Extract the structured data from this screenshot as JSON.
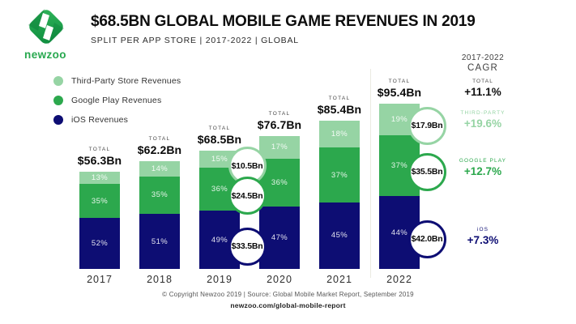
{
  "palette": {
    "third_party": "#96D4A4",
    "google_play": "#2CA84D",
    "ios": "#0D0D73"
  },
  "brand": {
    "name": "newzoo"
  },
  "header": {
    "title": "$68.5BN GLOBAL MOBILE GAME REVENUES IN 2019",
    "subtitle": "SPLIT PER APP STORE | 2017-2022 | GLOBAL"
  },
  "legend": {
    "items": [
      {
        "key": "third_party",
        "label": "Third-Party Store Revenues"
      },
      {
        "key": "google_play",
        "label": "Google Play Revenues"
      },
      {
        "key": "ios",
        "label": "iOS Revenues"
      }
    ]
  },
  "chart_data": {
    "type": "bar",
    "stacked": true,
    "unit": "%",
    "title": "Global mobile game revenues split per app store, 2017-2022",
    "categories": [
      "2017",
      "2018",
      "2019",
      "2020",
      "2021",
      "2022"
    ],
    "totals_bn": [
      56.3,
      62.2,
      68.5,
      76.7,
      85.4,
      95.4
    ],
    "totals_display": [
      "$56.3Bn",
      "$62.2Bn",
      "$68.5Bn",
      "$76.7Bn",
      "$85.4Bn",
      "$95.4Bn"
    ],
    "total_caption": "TOTAL",
    "series": [
      {
        "key": "ios",
        "name": "iOS Revenues",
        "values": [
          52,
          51,
          49,
          47,
          45,
          44
        ]
      },
      {
        "key": "google_play",
        "name": "Google Play Revenues",
        "values": [
          35,
          35,
          36,
          36,
          37,
          37
        ]
      },
      {
        "key": "third_party",
        "name": "Third-Party Store Revenues",
        "values": [
          13,
          14,
          15,
          17,
          18,
          19
        ]
      }
    ],
    "callouts": [
      {
        "category": "2019",
        "items": [
          {
            "series": "third_party",
            "value": "$10.5Bn"
          },
          {
            "series": "google_play",
            "value": "$24.5Bn"
          },
          {
            "series": "ios",
            "value": "$33.5Bn"
          }
        ]
      },
      {
        "category": "2022",
        "items": [
          {
            "series": "third_party",
            "value": "$17.9Bn"
          },
          {
            "series": "google_play",
            "value": "$35.5Bn"
          },
          {
            "series": "ios",
            "value": "$42.0Bn"
          }
        ]
      }
    ],
    "legend_position": "top-left",
    "grid": false,
    "axes": false
  },
  "cagr": {
    "period": "2017-2022",
    "heading": "CAGR",
    "groups": [
      {
        "key": "total",
        "label": "TOTAL",
        "value": "+11.1%"
      },
      {
        "key": "third_party",
        "label": "THIRD-PARTY",
        "value": "+19.6%"
      },
      {
        "key": "google_play",
        "label": "GOOGLE PLAY",
        "value": "+12.7%"
      },
      {
        "key": "ios",
        "label": "iOS",
        "value": "+7.3%"
      }
    ]
  },
  "footer": {
    "line1": "© Copyright Newzoo 2019 | Source: Global Mobile Market Report, September 2019",
    "line2": "newzoo.com/global-mobile-report"
  }
}
